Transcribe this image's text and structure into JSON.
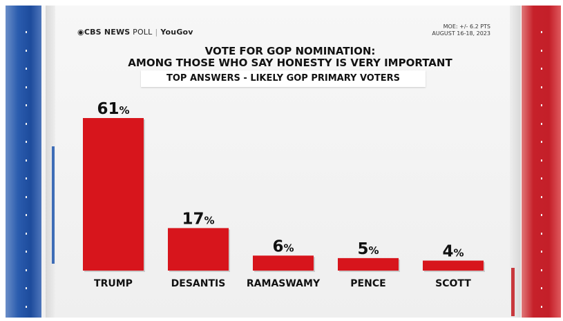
{
  "header": {
    "logo_cbs": "CBS NEWS",
    "logo_poll": "POLL",
    "logo_partner": "YouGov",
    "moe": "MOE: +/- 6.2 PTS",
    "dates": "AUGUST 16-18, 2023"
  },
  "chart_data": {
    "type": "bar",
    "title": "VOTE FOR GOP NOMINATION:",
    "title_line2": "AMONG THOSE WHO SAY HONESTY IS VERY IMPORTANT",
    "subtitle": "TOP ANSWERS - LIKELY GOP PRIMARY VOTERS",
    "categories": [
      "TRUMP",
      "DESANTIS",
      "RAMASWAMY",
      "PENCE",
      "SCOTT"
    ],
    "values": [
      61,
      17,
      6,
      5,
      4
    ],
    "value_suffix": "%",
    "ylim": [
      0,
      61
    ],
    "grid": false,
    "legend": "none",
    "bar_color": "#d7151c"
  }
}
